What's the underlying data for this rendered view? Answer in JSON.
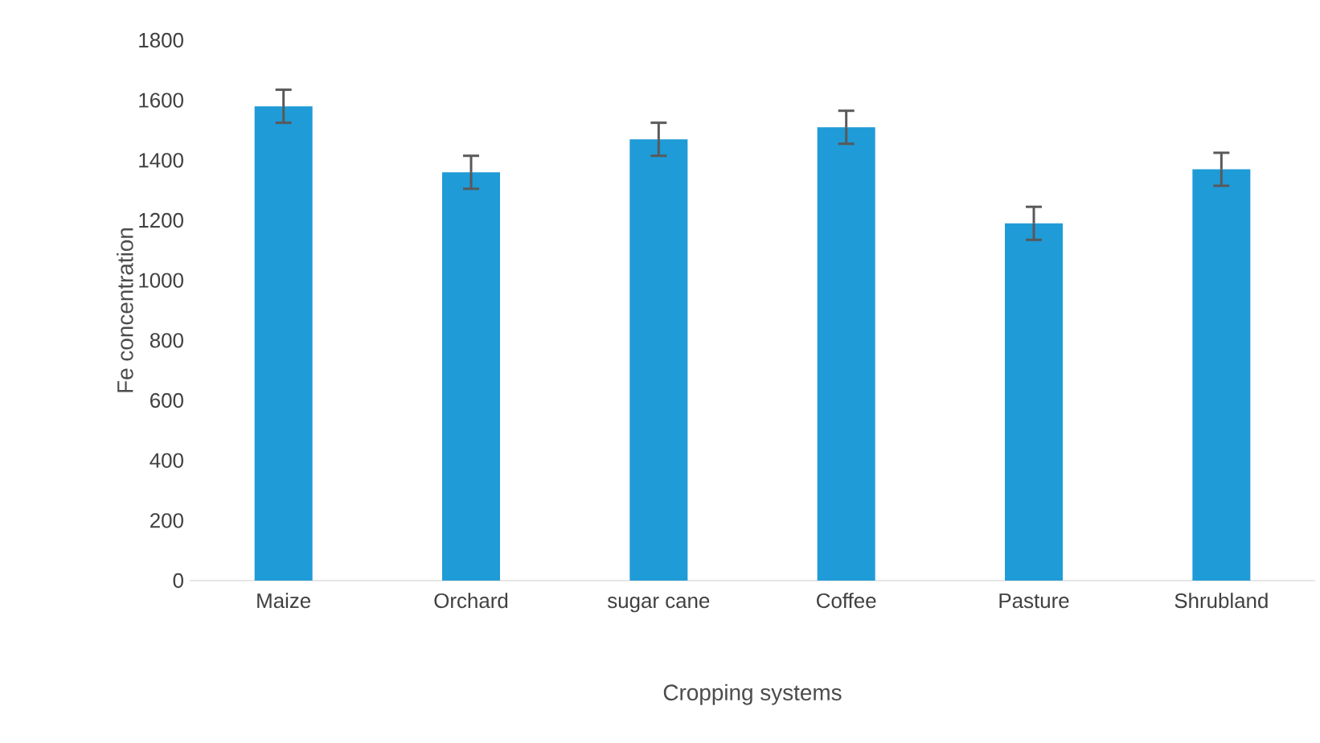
{
  "chart_data": {
    "type": "bar",
    "xlabel": "Cropping systems",
    "ylabel": "Fe concentration",
    "categories": [
      "Maize",
      "Orchard",
      "sugar cane",
      "Coffee",
      "Pasture",
      "Shrubland"
    ],
    "values": [
      1580,
      1360,
      1470,
      1510,
      1190,
      1370
    ],
    "errors": [
      55,
      55,
      55,
      55,
      55,
      55
    ],
    "color": "#1f9bd7",
    "ylim": [
      0,
      1800
    ],
    "yticks": [
      0,
      200,
      400,
      600,
      800,
      1000,
      1200,
      1400,
      1600,
      1800
    ],
    "grid": false
  }
}
